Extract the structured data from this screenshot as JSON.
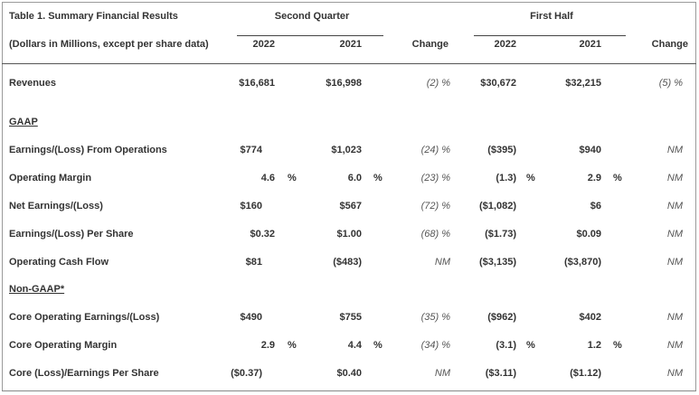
{
  "table": {
    "title": "Table 1. Summary Financial Results",
    "units": "(Dollars in Millions, except per share data)",
    "group_second_quarter": "Second Quarter",
    "group_first_half": "First Half",
    "col_2022_q": "2022",
    "col_2021_q": "2021",
    "col_change_q": "Change",
    "col_2022_h": "2022",
    "col_2021_h": "2021",
    "col_change_h": "Change",
    "section_gaap": "GAAP",
    "section_nongaap": "Non-GAAP*",
    "pct_sign": "%",
    "rows": [
      {
        "label": "Revenues",
        "q22": "$16,681",
        "q21": "$16,998",
        "qchg": "(2) %",
        "h22": "$30,672",
        "h21": "$32,215",
        "hchg": "(5) %"
      },
      {
        "label": "Earnings/(Loss) From Operations",
        "q22": "$774",
        "q21": "$1,023",
        "qchg": "(24) %",
        "h22": "($395)",
        "h21": "$940",
        "hchg": "NM"
      },
      {
        "label": "Operating Margin",
        "q22": "4.6",
        "q21": "6.0",
        "qchg": "(23) %",
        "h22": "(1.3)",
        "h21": "2.9",
        "hchg": "NM"
      },
      {
        "label": "Net Earnings/(Loss)",
        "q22": "$160",
        "q21": "$567",
        "qchg": "(72) %",
        "h22": "($1,082)",
        "h21": "$6",
        "hchg": "NM"
      },
      {
        "label": "Earnings/(Loss) Per Share",
        "q22": "$0.32",
        "q21": "$1.00",
        "qchg": "(68) %",
        "h22": "($1.73)",
        "h21": "$0.09",
        "hchg": "NM"
      },
      {
        "label": "Operating Cash Flow",
        "q22": "$81",
        "q21": "($483)",
        "qchg": "NM",
        "h22": "($3,135)",
        "h21": "($3,870)",
        "hchg": "NM"
      },
      {
        "label": "Core Operating Earnings/(Loss)",
        "q22": "$490",
        "q21": "$755",
        "qchg": "(35) %",
        "h22": "($962)",
        "h21": "$402",
        "hchg": "NM"
      },
      {
        "label": "Core Operating Margin",
        "q22": "2.9",
        "q21": "4.4",
        "qchg": "(34) %",
        "h22": "(3.1)",
        "h21": "1.2",
        "hchg": "NM"
      },
      {
        "label": "Core (Loss)/Earnings Per Share",
        "q22": "($0.37)",
        "q21": "$0.40",
        "qchg": "NM",
        "h22": "($3.11)",
        "h21": "($1.12)",
        "hchg": "NM"
      }
    ]
  }
}
